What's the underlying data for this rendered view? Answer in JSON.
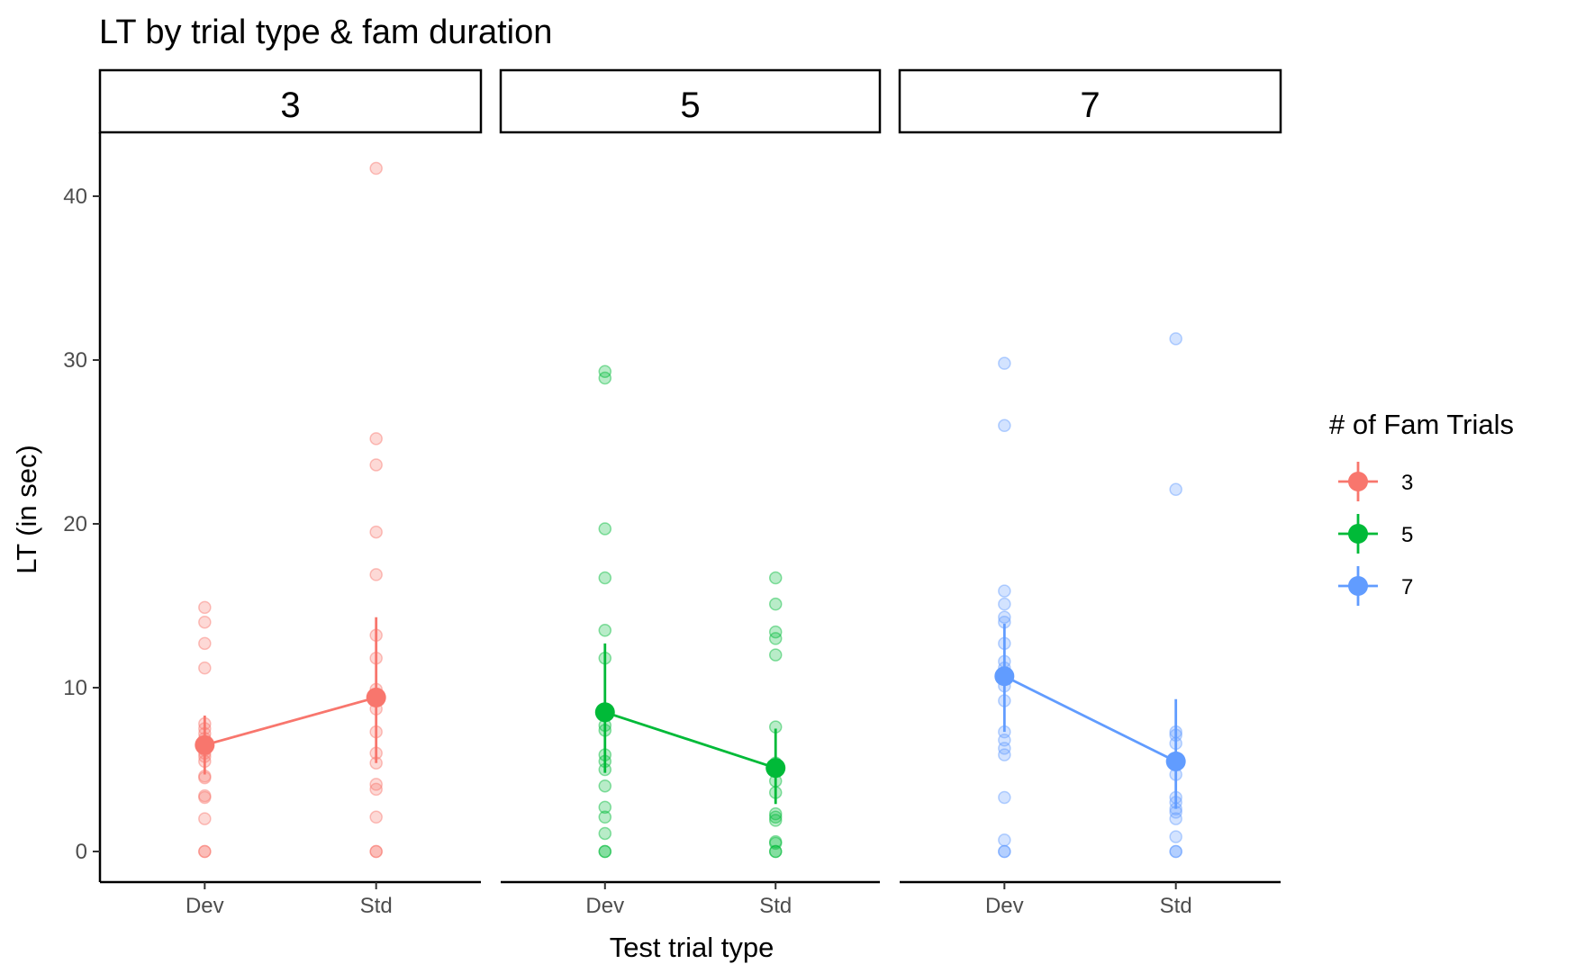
{
  "chart_data": {
    "type": "scatter",
    "title": "LT by trial type & fam duration",
    "xlabel": "Test trial type",
    "ylabel": "LT (in sec)",
    "categories": [
      "Dev",
      "Std"
    ],
    "ylim": [
      -4,
      44
    ],
    "yticks": [
      0,
      10,
      20,
      30,
      40
    ],
    "grid": false,
    "legend": {
      "title": "# of Fam Trials",
      "placement": "right",
      "entries": [
        "3",
        "5",
        "7"
      ]
    },
    "facets": [
      {
        "label": "3",
        "color": "#F8766D",
        "means": [
          6.5,
          9.4
        ],
        "ci_low": [
          4.7,
          5.4
        ],
        "ci_high": [
          8.3,
          14.3
        ],
        "points": {
          "Dev": [
            0,
            0,
            2.0,
            3.3,
            3.4,
            4.5,
            4.6,
            5.5,
            5.8,
            6.0,
            6.2,
            6.4,
            6.6,
            6.9,
            7.2,
            7.5,
            7.8,
            11.2,
            12.7,
            14.0,
            14.9
          ],
          "Std": [
            0,
            0,
            2.1,
            3.8,
            4.1,
            5.4,
            6.0,
            7.3,
            8.7,
            9.9,
            11.8,
            13.2,
            16.9,
            19.5,
            23.6,
            25.2,
            41.7
          ]
        }
      },
      {
        "label": "5",
        "color": "#00BA38",
        "means": [
          8.5,
          5.1
        ],
        "ci_low": [
          4.8,
          2.9
        ],
        "ci_high": [
          12.7,
          7.5
        ],
        "points": {
          "Dev": [
            0,
            0,
            1.1,
            2.1,
            2.7,
            4.0,
            5.0,
            5.5,
            5.9,
            7.4,
            7.7,
            11.8,
            13.5,
            16.7,
            19.7,
            28.9,
            29.3
          ],
          "Std": [
            0,
            0,
            0.5,
            0.6,
            1.9,
            2.1,
            2.3,
            3.6,
            4.3,
            5.4,
            7.6,
            12.0,
            13.0,
            13.4,
            15.1,
            16.7
          ]
        }
      },
      {
        "label": "7",
        "color": "#619CFF",
        "means": [
          10.7,
          5.5
        ],
        "ci_low": [
          7.3,
          2.6
        ],
        "ci_high": [
          13.9,
          9.3
        ],
        "points": {
          "Dev": [
            0,
            0,
            0.7,
            3.3,
            5.9,
            6.3,
            6.8,
            7.3,
            9.2,
            10.1,
            10.8,
            11.2,
            11.6,
            12.7,
            14.0,
            14.3,
            15.1,
            15.9,
            26.0,
            29.8
          ],
          "Std": [
            0,
            0,
            0.9,
            2.0,
            2.4,
            2.6,
            3.0,
            3.3,
            4.7,
            5.3,
            5.7,
            6.6,
            7.1,
            7.3,
            22.1,
            31.3
          ]
        }
      }
    ]
  }
}
